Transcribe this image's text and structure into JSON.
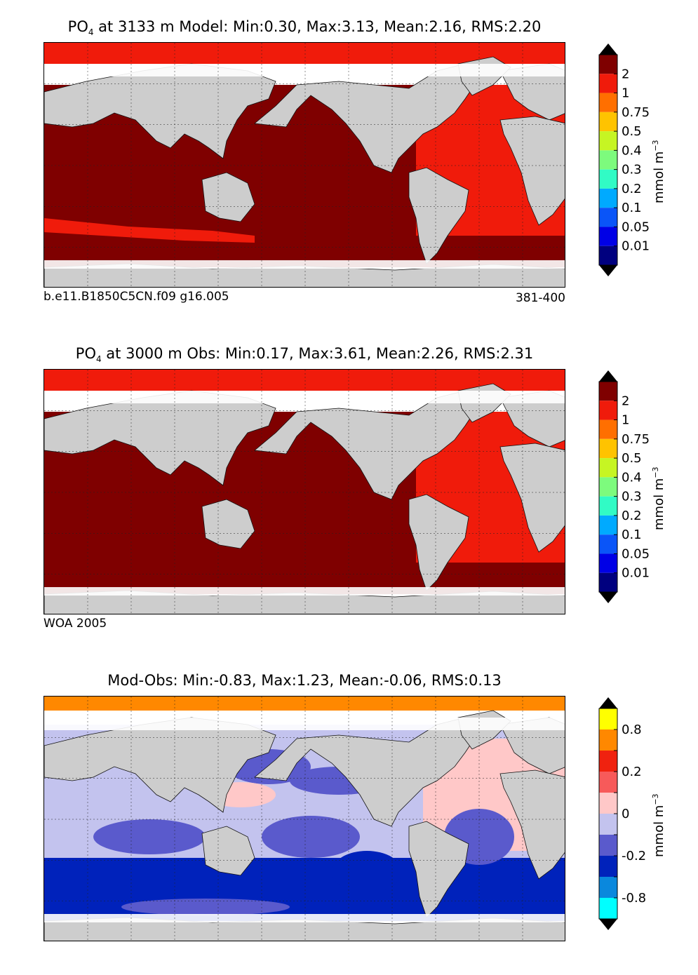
{
  "panels": [
    {
      "title_species": "PO",
      "title_sub": "4",
      "title_rest": " at 3133 m Model: Min:0.30, Max:3.13, Mean:2.16, RMS:2.20",
      "caption_left": "b.e11.B1850C5CN.f09 g16.005",
      "caption_right": "381-400",
      "colorbar": {
        "ticks": [
          "2",
          "1",
          "0.75",
          "0.5",
          "0.4",
          "0.3",
          "0.2",
          "0.1",
          "0.05",
          "0.01"
        ],
        "colors": [
          "#7f0000",
          "#f01b0b",
          "#ff6f00",
          "#ffc300",
          "#c6f523",
          "#7dfb7d",
          "#31fbc5",
          "#00aaff",
          "#0a55f8",
          "#0000e6",
          "#00007f"
        ],
        "unit": "mmol m",
        "unit_exp": "−3"
      }
    },
    {
      "title_species": "PO",
      "title_sub": "4",
      "title_rest": " at 3000 m Obs: Min:0.17, Max:3.61, Mean:2.26, RMS:2.31",
      "caption_left": "WOA 2005",
      "caption_right": "",
      "colorbar": {
        "ticks": [
          "2",
          "1",
          "0.75",
          "0.5",
          "0.4",
          "0.3",
          "0.2",
          "0.1",
          "0.05",
          "0.01"
        ],
        "colors": [
          "#7f0000",
          "#f01b0b",
          "#ff6f00",
          "#ffc300",
          "#c6f523",
          "#7dfb7d",
          "#31fbc5",
          "#00aaff",
          "#0a55f8",
          "#0000e6",
          "#00007f"
        ],
        "unit": "mmol m",
        "unit_exp": "−3"
      }
    },
    {
      "title_species": "",
      "title_sub": "",
      "title_rest": "Mod-Obs: Min:-0.83, Max:1.23, Mean:-0.06, RMS:0.13",
      "caption_left": "",
      "caption_right": "",
      "colorbar": {
        "ticks": [
          "0.8",
          "",
          "0.2",
          "",
          "0",
          "",
          "-0.2",
          "",
          "-0.8"
        ],
        "tick_positions": [
          1,
          2,
          3,
          4,
          5,
          6,
          7,
          8,
          9
        ],
        "colors": [
          "#ffff00",
          "#ff8800",
          "#f0220f",
          "#f75a5a",
          "#ffc8c8",
          "#c3c3ee",
          "#5a5acc",
          "#0022bb",
          "#0a88dd",
          "#00ffff"
        ],
        "unit": "mmol m",
        "unit_exp": "−3"
      }
    }
  ],
  "chart_data": [
    {
      "type": "heatmap",
      "title": "PO4 at 3133 m Model: Min:0.30, Max:3.13, Mean:2.16, RMS:2.20",
      "variable": "PO4",
      "depth_m": 3133,
      "source": "Model",
      "stats": {
        "min": 0.3,
        "max": 3.13,
        "mean": 2.16,
        "rms": 2.2
      },
      "colorbar_levels": [
        0.01,
        0.05,
        0.1,
        0.2,
        0.3,
        0.4,
        0.5,
        0.75,
        1,
        2
      ],
      "units": "mmol m^-3",
      "basin_values": {
        "Pacific": ">2",
        "Indian": ">2",
        "Southern Ocean": ">2",
        "Atlantic": "1-2",
        "Arctic": "1-2"
      },
      "grid": true
    },
    {
      "type": "heatmap",
      "title": "PO4 at 3000 m Obs: Min:0.17, Max:3.61, Mean:2.26, RMS:2.31",
      "variable": "PO4",
      "depth_m": 3000,
      "source": "WOA 2005",
      "stats": {
        "min": 0.17,
        "max": 3.61,
        "mean": 2.26,
        "rms": 2.31
      },
      "colorbar_levels": [
        0.01,
        0.05,
        0.1,
        0.2,
        0.3,
        0.4,
        0.5,
        0.75,
        1,
        2
      ],
      "units": "mmol m^-3",
      "basin_values": {
        "Pacific": ">2",
        "Indian": ">2",
        "Southern Ocean": ">2",
        "Atlantic": "1-2",
        "Arctic": "1-2"
      },
      "grid": true
    },
    {
      "type": "heatmap",
      "title": "Mod-Obs: Min:-0.83, Max:1.23, Mean:-0.06, RMS:0.13",
      "variable": "PO4 difference",
      "stats": {
        "min": -0.83,
        "max": 1.23,
        "mean": -0.06,
        "rms": 0.13
      },
      "colorbar_labels": [
        0.8,
        0.2,
        0,
        -0.2,
        -0.8
      ],
      "units": "mmol m^-3",
      "basin_values": {
        "Pacific": "-0.2 to 0.1",
        "Indian": "-0.2 to 0",
        "Southern Ocean": "-0.4 to -0.2",
        "North Atlantic": "0 to 0.1",
        "Arctic": "0.2 to 0.8"
      },
      "grid": true
    }
  ]
}
